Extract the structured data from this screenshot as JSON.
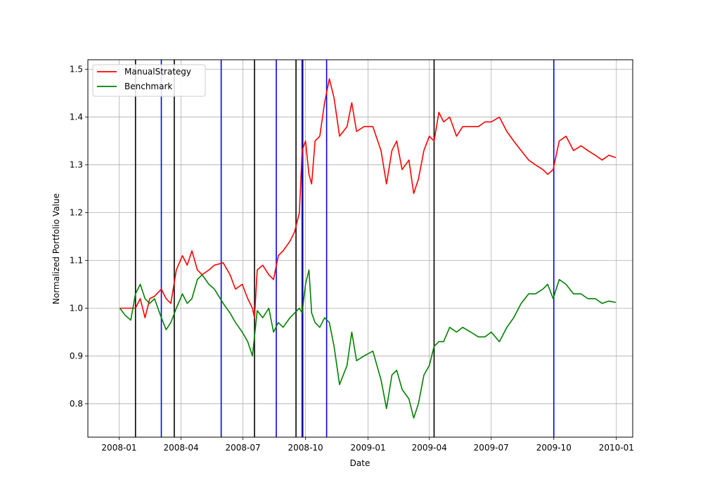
{
  "chart_data": {
    "type": "line",
    "title": "",
    "xlabel": "Date",
    "ylabel": "Normalized Portfolio Value",
    "xlim": [
      "2007-11-16",
      "2010-01-25"
    ],
    "ylim": [
      0.73,
      1.52
    ],
    "grid": true,
    "legend_position": "top-left",
    "x_ticks": [
      "2008-01",
      "2008-04",
      "2008-07",
      "2008-10",
      "2009-01",
      "2009-04",
      "2009-07",
      "2009-10",
      "2010-01"
    ],
    "y_ticks": [
      "0.8",
      "0.9",
      "1.0",
      "1.1",
      "1.2",
      "1.3",
      "1.4",
      "1.5"
    ],
    "series": [
      {
        "name": "ManualStrategy",
        "color": "#ff0000",
        "points": [
          [
            "2008-01-02",
            1.0
          ],
          [
            "2008-01-15",
            1.0
          ],
          [
            "2008-01-25",
            1.0
          ],
          [
            "2008-02-01",
            1.02
          ],
          [
            "2008-02-08",
            0.98
          ],
          [
            "2008-02-15",
            1.02
          ],
          [
            "2008-02-22",
            1.025
          ],
          [
            "2008-03-03",
            1.04
          ],
          [
            "2008-03-10",
            1.02
          ],
          [
            "2008-03-17",
            1.01
          ],
          [
            "2008-03-25",
            1.08
          ],
          [
            "2008-04-03",
            1.11
          ],
          [
            "2008-04-10",
            1.09
          ],
          [
            "2008-04-17",
            1.12
          ],
          [
            "2008-04-25",
            1.08
          ],
          [
            "2008-05-02",
            1.07
          ],
          [
            "2008-05-12",
            1.08
          ],
          [
            "2008-05-20",
            1.09
          ],
          [
            "2008-06-02",
            1.095
          ],
          [
            "2008-06-12",
            1.07
          ],
          [
            "2008-06-20",
            1.04
          ],
          [
            "2008-06-30",
            1.05
          ],
          [
            "2008-07-08",
            1.02
          ],
          [
            "2008-07-15",
            1.0
          ],
          [
            "2008-07-18",
            0.98
          ],
          [
            "2008-07-22",
            1.08
          ],
          [
            "2008-07-30",
            1.09
          ],
          [
            "2008-08-08",
            1.07
          ],
          [
            "2008-08-15",
            1.06
          ],
          [
            "2008-08-22",
            1.11
          ],
          [
            "2008-08-29",
            1.12
          ],
          [
            "2008-09-08",
            1.14
          ],
          [
            "2008-09-15",
            1.16
          ],
          [
            "2008-09-22",
            1.2
          ],
          [
            "2008-09-26",
            1.33
          ],
          [
            "2008-10-01",
            1.35
          ],
          [
            "2008-10-06",
            1.28
          ],
          [
            "2008-10-10",
            1.26
          ],
          [
            "2008-10-15",
            1.35
          ],
          [
            "2008-10-22",
            1.36
          ],
          [
            "2008-10-29",
            1.43
          ],
          [
            "2008-11-05",
            1.48
          ],
          [
            "2008-11-12",
            1.44
          ],
          [
            "2008-11-20",
            1.36
          ],
          [
            "2008-12-01",
            1.38
          ],
          [
            "2008-12-08",
            1.43
          ],
          [
            "2008-12-15",
            1.37
          ],
          [
            "2008-12-26",
            1.38
          ],
          [
            "2009-01-08",
            1.38
          ],
          [
            "2009-01-20",
            1.33
          ],
          [
            "2009-01-28",
            1.26
          ],
          [
            "2009-02-05",
            1.33
          ],
          [
            "2009-02-12",
            1.35
          ],
          [
            "2009-02-20",
            1.29
          ],
          [
            "2009-03-02",
            1.31
          ],
          [
            "2009-03-09",
            1.24
          ],
          [
            "2009-03-16",
            1.27
          ],
          [
            "2009-03-24",
            1.33
          ],
          [
            "2009-04-01",
            1.36
          ],
          [
            "2009-04-08",
            1.35
          ],
          [
            "2009-04-15",
            1.41
          ],
          [
            "2009-04-22",
            1.39
          ],
          [
            "2009-05-01",
            1.4
          ],
          [
            "2009-05-11",
            1.36
          ],
          [
            "2009-05-20",
            1.38
          ],
          [
            "2009-06-01",
            1.38
          ],
          [
            "2009-06-12",
            1.38
          ],
          [
            "2009-06-22",
            1.39
          ],
          [
            "2009-07-01",
            1.39
          ],
          [
            "2009-07-13",
            1.4
          ],
          [
            "2009-07-24",
            1.37
          ],
          [
            "2009-08-03",
            1.35
          ],
          [
            "2009-08-14",
            1.33
          ],
          [
            "2009-08-25",
            1.31
          ],
          [
            "2009-09-04",
            1.3
          ],
          [
            "2009-09-15",
            1.29
          ],
          [
            "2009-09-22",
            1.28
          ],
          [
            "2009-09-30",
            1.29
          ],
          [
            "2009-10-09",
            1.35
          ],
          [
            "2009-10-19",
            1.36
          ],
          [
            "2009-10-30",
            1.33
          ],
          [
            "2009-11-10",
            1.34
          ],
          [
            "2009-11-20",
            1.33
          ],
          [
            "2009-12-01",
            1.32
          ],
          [
            "2009-12-11",
            1.31
          ],
          [
            "2009-12-21",
            1.32
          ],
          [
            "2009-12-31",
            1.315
          ]
        ]
      },
      {
        "name": "Benchmark",
        "color": "#008000",
        "points": [
          [
            "2008-01-02",
            1.0
          ],
          [
            "2008-01-10",
            0.985
          ],
          [
            "2008-01-18",
            0.975
          ],
          [
            "2008-01-25",
            1.03
          ],
          [
            "2008-02-01",
            1.05
          ],
          [
            "2008-02-08",
            1.02
          ],
          [
            "2008-02-15",
            1.01
          ],
          [
            "2008-02-22",
            1.02
          ],
          [
            "2008-03-03",
            0.98
          ],
          [
            "2008-03-10",
            0.955
          ],
          [
            "2008-03-17",
            0.97
          ],
          [
            "2008-03-25",
            1.0
          ],
          [
            "2008-04-03",
            1.03
          ],
          [
            "2008-04-10",
            1.01
          ],
          [
            "2008-04-17",
            1.02
          ],
          [
            "2008-04-25",
            1.06
          ],
          [
            "2008-05-02",
            1.07
          ],
          [
            "2008-05-12",
            1.05
          ],
          [
            "2008-05-20",
            1.04
          ],
          [
            "2008-06-02",
            1.01
          ],
          [
            "2008-06-12",
            0.99
          ],
          [
            "2008-06-20",
            0.97
          ],
          [
            "2008-06-30",
            0.95
          ],
          [
            "2008-07-08",
            0.93
          ],
          [
            "2008-07-15",
            0.9
          ],
          [
            "2008-07-22",
            0.995
          ],
          [
            "2008-07-30",
            0.98
          ],
          [
            "2008-08-08",
            1.0
          ],
          [
            "2008-08-15",
            0.95
          ],
          [
            "2008-08-22",
            0.97
          ],
          [
            "2008-08-29",
            0.96
          ],
          [
            "2008-09-08",
            0.98
          ],
          [
            "2008-09-15",
            0.99
          ],
          [
            "2008-09-22",
            1.0
          ],
          [
            "2008-09-26",
            0.99
          ],
          [
            "2008-10-01",
            1.05
          ],
          [
            "2008-10-06",
            1.08
          ],
          [
            "2008-10-10",
            0.99
          ],
          [
            "2008-10-15",
            0.97
          ],
          [
            "2008-10-22",
            0.96
          ],
          [
            "2008-10-29",
            0.98
          ],
          [
            "2008-11-05",
            0.97
          ],
          [
            "2008-11-12",
            0.92
          ],
          [
            "2008-11-20",
            0.84
          ],
          [
            "2008-12-01",
            0.88
          ],
          [
            "2008-12-08",
            0.95
          ],
          [
            "2008-12-15",
            0.89
          ],
          [
            "2008-12-26",
            0.9
          ],
          [
            "2009-01-08",
            0.91
          ],
          [
            "2009-01-20",
            0.85
          ],
          [
            "2009-01-28",
            0.79
          ],
          [
            "2009-02-05",
            0.86
          ],
          [
            "2009-02-12",
            0.87
          ],
          [
            "2009-02-20",
            0.83
          ],
          [
            "2009-03-02",
            0.81
          ],
          [
            "2009-03-09",
            0.77
          ],
          [
            "2009-03-16",
            0.8
          ],
          [
            "2009-03-24",
            0.86
          ],
          [
            "2009-04-01",
            0.88
          ],
          [
            "2009-04-08",
            0.92
          ],
          [
            "2009-04-15",
            0.93
          ],
          [
            "2009-04-22",
            0.93
          ],
          [
            "2009-05-01",
            0.96
          ],
          [
            "2009-05-11",
            0.95
          ],
          [
            "2009-05-20",
            0.96
          ],
          [
            "2009-06-01",
            0.95
          ],
          [
            "2009-06-12",
            0.94
          ],
          [
            "2009-06-22",
            0.94
          ],
          [
            "2009-07-01",
            0.95
          ],
          [
            "2009-07-13",
            0.93
          ],
          [
            "2009-07-24",
            0.96
          ],
          [
            "2009-08-03",
            0.98
          ],
          [
            "2009-08-14",
            1.01
          ],
          [
            "2009-08-25",
            1.03
          ],
          [
            "2009-09-04",
            1.03
          ],
          [
            "2009-09-15",
            1.04
          ],
          [
            "2009-09-22",
            1.05
          ],
          [
            "2009-09-30",
            1.02
          ],
          [
            "2009-10-09",
            1.06
          ],
          [
            "2009-10-19",
            1.05
          ],
          [
            "2009-10-30",
            1.03
          ],
          [
            "2009-11-10",
            1.03
          ],
          [
            "2009-11-20",
            1.02
          ],
          [
            "2009-12-01",
            1.02
          ],
          [
            "2009-12-11",
            1.01
          ],
          [
            "2009-12-21",
            1.015
          ],
          [
            "2009-12-31",
            1.012
          ]
        ]
      }
    ],
    "vertical_lines": [
      {
        "date": "2008-01-25",
        "color": "#000000"
      },
      {
        "date": "2008-03-03",
        "color": "#0000ff"
      },
      {
        "date": "2008-03-22",
        "color": "#000000"
      },
      {
        "date": "2008-05-30",
        "color": "#0000ff"
      },
      {
        "date": "2008-07-18",
        "color": "#000000"
      },
      {
        "date": "2008-08-19",
        "color": "#0000ff"
      },
      {
        "date": "2008-09-17",
        "color": "#000000"
      },
      {
        "date": "2008-09-26",
        "color": "#000000"
      },
      {
        "date": "2008-09-27",
        "color": "#0000ff"
      },
      {
        "date": "2008-11-01",
        "color": "#0000ff"
      },
      {
        "date": "2009-04-08",
        "color": "#000000"
      },
      {
        "date": "2009-10-01",
        "color": "#0000ff"
      }
    ]
  }
}
